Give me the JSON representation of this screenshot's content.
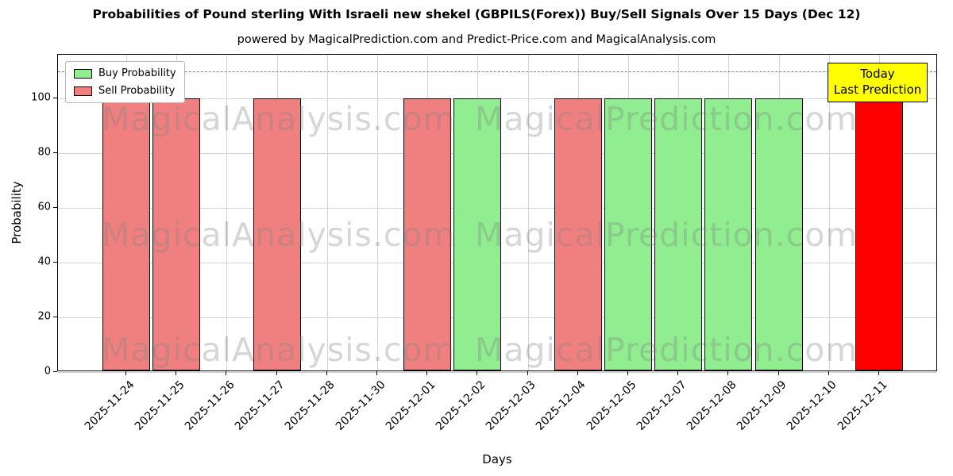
{
  "subtitle": "powered by MagicalPrediction.com and Predict-Price.com and MagicalAnalysis.com",
  "annotation": {
    "line1": "Today",
    "line2": "Last Prediction",
    "bg_color": "#ffff00"
  },
  "watermarks": {
    "left": "MagicalAnalysis.com",
    "right": "MagicalPrediction.com"
  },
  "colors": {
    "buy": "#90ee90",
    "sell": "#f08080",
    "today": "#ff0000",
    "grid": "#d3d3d3",
    "dashed_line": "#7f7f7f",
    "annotation_bg": "#ffff00"
  },
  "chart_data": {
    "type": "bar",
    "title": "Probabilities of Pound sterling With Israeli new shekel (GBPILS(Forex)) Buy/Sell Signals Over 15 Days (Dec 12)",
    "xlabel": "Days",
    "ylabel": "Probability",
    "ylim": [
      0,
      116
    ],
    "yticks": [
      0,
      20,
      40,
      60,
      80,
      100
    ],
    "dashed_reference_line_y": 110,
    "grid": true,
    "legend_position": "upper left",
    "categories": [
      "2025-11-24",
      "2025-11-25",
      "2025-11-26",
      "2025-11-27",
      "2025-11-28",
      "2025-11-30",
      "2025-12-01",
      "2025-12-02",
      "2025-12-03",
      "2025-12-04",
      "2025-12-05",
      "2025-12-07",
      "2025-12-08",
      "2025-12-09",
      "2025-12-10",
      "2025-12-11"
    ],
    "series": [
      {
        "name": "Buy Probability",
        "color": "#90ee90",
        "values": [
          0,
          0,
          0,
          0,
          0,
          0,
          0,
          100,
          0,
          0,
          100,
          100,
          100,
          100,
          0,
          0
        ]
      },
      {
        "name": "Sell Probability",
        "color": "#f08080",
        "values": [
          100,
          100,
          0,
          100,
          0,
          0,
          100,
          0,
          0,
          100,
          0,
          0,
          0,
          0,
          0,
          0
        ]
      },
      {
        "name": "Today (Last Prediction)",
        "color": "#ff0000",
        "values": [
          0,
          0,
          0,
          0,
          0,
          0,
          0,
          0,
          0,
          0,
          0,
          0,
          0,
          0,
          0,
          100
        ]
      }
    ]
  }
}
